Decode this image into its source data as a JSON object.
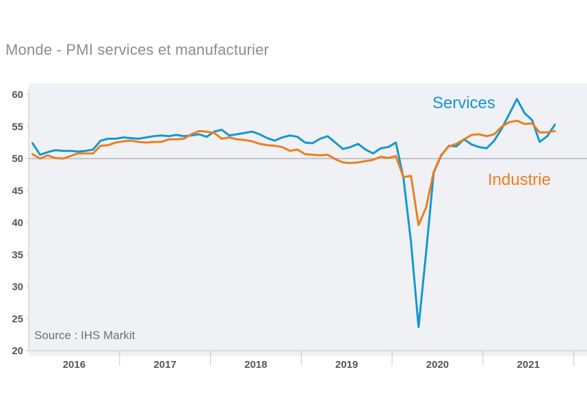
{
  "title": "Monde - PMI services et manufacturier",
  "source": "Source : IHS Markit",
  "colors": {
    "services": "#1497cf",
    "industrie": "#ed7d1e",
    "plot_bg": "#eff1f4",
    "reference": "#b3b3b3"
  },
  "chart_data": {
    "type": "line",
    "title": "Monde - PMI services et manufacturier",
    "xlabel": "",
    "ylabel": "",
    "ylim": [
      20,
      60
    ],
    "yticks": [
      20,
      25,
      30,
      35,
      40,
      45,
      50,
      55,
      60
    ],
    "xlim": [
      2016.0,
      2021.92
    ],
    "year_labels": [
      "2016",
      "2017",
      "2018",
      "2019",
      "2020",
      "2021"
    ],
    "reference_line": 50,
    "start": "2016-01",
    "series": [
      {
        "name": "Services",
        "label": "Services",
        "values": [
          52.4,
          50.6,
          51.0,
          51.3,
          51.2,
          51.2,
          51.1,
          51.2,
          51.4,
          52.8,
          53.1,
          53.1,
          53.3,
          53.2,
          53.1,
          53.3,
          53.5,
          53.6,
          53.5,
          53.7,
          53.5,
          53.6,
          53.8,
          53.4,
          54.2,
          54.5,
          53.6,
          53.8,
          54.0,
          54.2,
          53.8,
          53.2,
          52.8,
          53.3,
          53.6,
          53.4,
          52.5,
          52.4,
          53.1,
          53.5,
          52.5,
          51.5,
          51.8,
          52.3,
          51.4,
          50.8,
          51.6,
          51.8,
          52.5,
          47.0,
          37.0,
          23.7,
          35.4,
          47.8,
          50.5,
          52.0,
          51.9,
          53.0,
          52.2,
          51.8,
          51.6,
          52.8,
          54.7,
          57.0,
          59.3,
          57.1,
          56.0,
          52.6,
          53.5,
          55.3
        ],
        "x_offset_months": 0
      },
      {
        "name": "Industrie",
        "label": "Industrie",
        "values": [
          50.7,
          50.0,
          50.5,
          50.1,
          50.0,
          50.4,
          50.8,
          50.8,
          50.8,
          52.0,
          52.1,
          52.5,
          52.7,
          52.8,
          52.6,
          52.5,
          52.6,
          52.6,
          53.0,
          53.0,
          53.1,
          53.8,
          54.3,
          54.2,
          54.0,
          53.1,
          53.3,
          53.0,
          52.9,
          52.7,
          52.3,
          52.1,
          52.0,
          51.8,
          51.2,
          51.4,
          50.7,
          50.6,
          50.5,
          50.6,
          49.9,
          49.4,
          49.3,
          49.4,
          49.6,
          49.8,
          50.3,
          50.1,
          50.4,
          47.1,
          47.3,
          39.6,
          42.4,
          47.9,
          50.6,
          51.9,
          52.3,
          53.0,
          53.7,
          53.8,
          53.5,
          53.8,
          55.0,
          55.7,
          55.9,
          55.4,
          55.5,
          54.1,
          54.1,
          54.3
        ],
        "x_offset_months": 0
      }
    ]
  }
}
